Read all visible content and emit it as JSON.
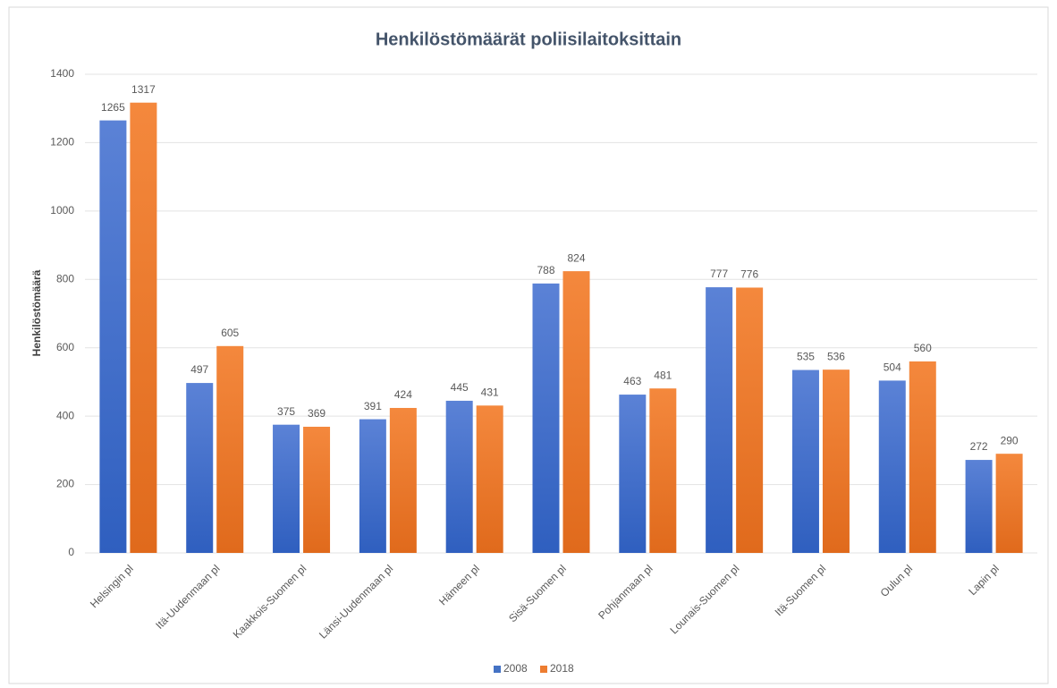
{
  "chart_data": {
    "type": "bar",
    "title": "Henkilöstömäärät poliisilaitoksittain",
    "y_label": "Henkilöstömäärä",
    "categories": [
      "Helsingin pl",
      "Itä-Uudenmaan pl",
      "Kaakkois-Suomen pl",
      "Länsi-Uudenmaan pl",
      "Hämeen pl",
      "Sisä-Suomen pl",
      "Pohjanmaan pl",
      "Lounais-Suomen pl",
      "Itä-Suomen pl",
      "Oulun pl",
      "Lapin pl"
    ],
    "series": [
      {
        "name": "2008",
        "color": "#4472c4",
        "values": [
          1265,
          497,
          375,
          391,
          445,
          788,
          463,
          777,
          535,
          504,
          272
        ]
      },
      {
        "name": "2018",
        "color": "#ed7d31",
        "values": [
          1317,
          605,
          369,
          424,
          431,
          824,
          481,
          776,
          536,
          560,
          290
        ]
      }
    ],
    "ylim": [
      0,
      1400
    ],
    "yticks": [
      0,
      200,
      400,
      600,
      800,
      1000,
      1200,
      1400
    ],
    "grid": true,
    "legend": "bottom"
  }
}
